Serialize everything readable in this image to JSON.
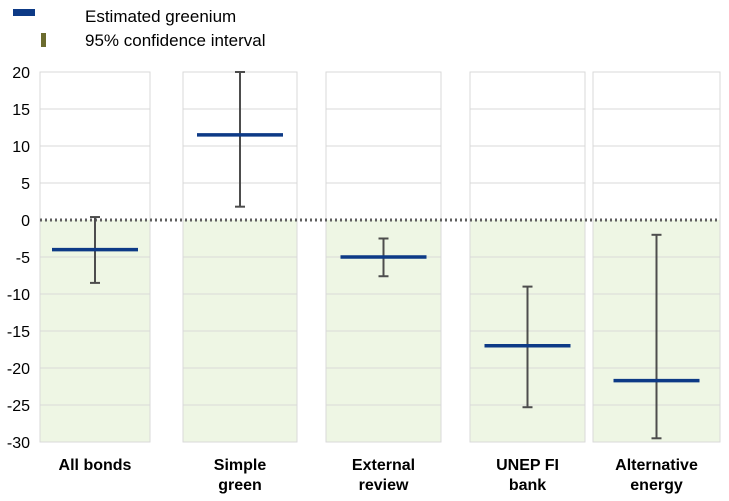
{
  "chart_data": {
    "type": "errorbar",
    "categories": [
      "All bonds",
      "Simple green",
      "External review",
      "UNEP FI bank",
      "Alternative energy"
    ],
    "category_lines": [
      [
        "All bonds"
      ],
      [
        "Simple",
        "green"
      ],
      [
        "External",
        "review"
      ],
      [
        "UNEP FI",
        "bank"
      ],
      [
        "Alternative",
        "energy"
      ]
    ],
    "series": [
      {
        "name": "Estimated greenium",
        "values": [
          -4.0,
          11.5,
          -5.0,
          -17.0,
          -21.7
        ],
        "color": "#0d3a86"
      },
      {
        "name": "95% confidence interval",
        "low": [
          -8.5,
          1.8,
          -7.6,
          -25.3,
          -29.5
        ],
        "high": [
          0.4,
          20.0,
          -2.5,
          -9.0,
          -2.0
        ],
        "color": "#4d4d4d"
      }
    ],
    "legend": {
      "items": [
        {
          "label": "Estimated greenium",
          "color": "#0d3a86"
        },
        {
          "label": "95% confidence interval",
          "color": "#6b6b2e"
        }
      ],
      "position": "top-left"
    },
    "ylim": [
      -30,
      20
    ],
    "yticks": [
      20,
      15,
      10,
      5,
      0,
      -5,
      -10,
      -15,
      -20,
      -25,
      -30
    ],
    "grid": true,
    "shading": {
      "below_zero_color": "#eef6e4"
    },
    "zero_line": "dotted"
  }
}
